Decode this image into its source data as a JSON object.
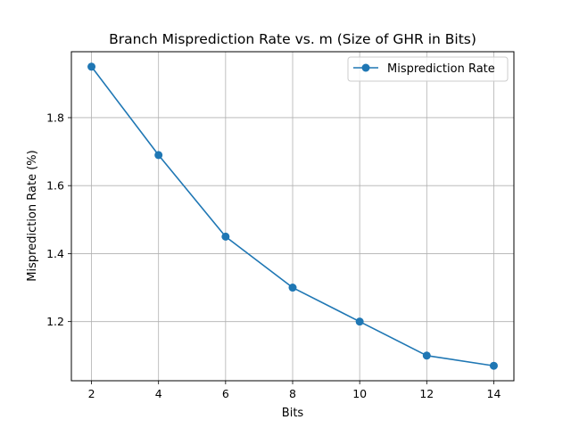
{
  "chart_data": {
    "type": "line",
    "title": "Branch Misprediction Rate vs. m (Size of GHR in Bits)",
    "xlabel": "Bits",
    "ylabel": "Misprediction Rate (%)",
    "x": [
      2,
      4,
      6,
      8,
      10,
      12,
      14
    ],
    "series": [
      {
        "name": "Misprediction Rate",
        "values": [
          1.95,
          1.69,
          1.45,
          1.3,
          1.2,
          1.1,
          1.07
        ],
        "color": "#1f77b4",
        "marker": "circle"
      }
    ],
    "xlim": [
      1.4,
      14.6
    ],
    "ylim": [
      1.026,
      1.994
    ],
    "xticks": [
      2,
      4,
      6,
      8,
      10,
      12,
      14
    ],
    "xtick_labels": [
      "2",
      "4",
      "6",
      "8",
      "10",
      "12",
      "14"
    ],
    "yticks": [
      1.2,
      1.4,
      1.6,
      1.8
    ],
    "ytick_labels": [
      "1.2",
      "1.4",
      "1.6",
      "1.8"
    ],
    "grid": true,
    "legend_position": "top-right"
  }
}
